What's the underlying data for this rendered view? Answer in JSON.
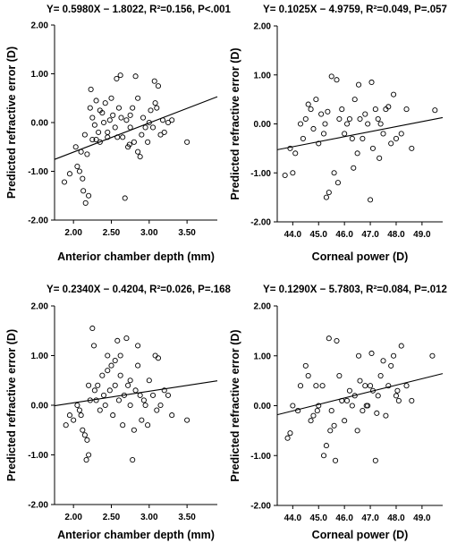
{
  "chart_data": [
    {
      "type": "scatter",
      "title": "Y= 0.5980X − 1.8022, R²=0.156, P<.001",
      "xlabel": "Anterior chamber depth (mm)",
      "ylabel": "Predicted refractive error (D)",
      "xlim": [
        1.75,
        3.9
      ],
      "ylim": [
        -2.0,
        2.0
      ],
      "xticks": [
        "2.00",
        "2.50",
        "3.00",
        "3.50"
      ],
      "yticks": [
        "2.00",
        "1.00",
        "0.00",
        "-1.00",
        "-2.00"
      ],
      "fit": {
        "slope": 0.598,
        "intercept": -1.8022
      },
      "x": [
        1.88,
        1.95,
        2.03,
        2.05,
        2.08,
        2.1,
        2.12,
        2.13,
        2.15,
        2.16,
        2.18,
        2.2,
        2.22,
        2.23,
        2.25,
        2.25,
        2.28,
        2.3,
        2.3,
        2.33,
        2.35,
        2.38,
        2.4,
        2.42,
        2.45,
        2.48,
        2.5,
        2.52,
        2.55,
        2.57,
        2.6,
        2.62,
        2.63,
        2.65,
        2.68,
        2.7,
        2.72,
        2.74,
        2.75,
        2.78,
        2.8,
        2.82,
        2.85,
        2.88,
        2.9,
        2.92,
        2.95,
        2.98,
        3.0,
        3.02,
        3.05,
        3.07,
        3.1,
        3.12,
        3.15,
        3.18,
        3.2,
        3.25,
        3.3,
        3.5,
        2.75,
        2.85,
        2.58,
        2.45,
        3.08,
        2.35
      ],
      "y": [
        -1.22,
        -1.05,
        -0.5,
        -0.9,
        -1.0,
        -0.6,
        -1.15,
        -1.4,
        -0.25,
        -1.65,
        -0.65,
        -1.5,
        0.3,
        0.68,
        -0.35,
        0.1,
        -0.05,
        -0.35,
        0.45,
        -0.2,
        -0.4,
        0.2,
        0.0,
        0.4,
        -0.3,
        0.05,
        0.5,
        0.15,
        -0.1,
        0.9,
        0.3,
        0.97,
        0.1,
        -0.3,
        -1.55,
        0.05,
        -0.5,
        -0.45,
        0.15,
        0.3,
        -0.4,
        0.95,
        0.5,
        -0.7,
        -0.25,
        0.1,
        -0.1,
        -0.4,
        0.0,
        0.25,
        -0.1,
        0.85,
        0.3,
        0.75,
        -0.25,
        0.05,
        -0.2,
        0.0,
        0.05,
        -0.4,
        -0.1,
        -0.6,
        -0.3,
        -0.2,
        0.4,
        0.25
      ]
    },
    {
      "type": "scatter",
      "title": "Y= 0.1025X − 4.9759, R²=0.049, P=.057",
      "xlabel": "Corneal power (D)",
      "ylabel": "Predicted refractive error (D)",
      "xlim": [
        43.4,
        49.8
      ],
      "ylim": [
        -2.0,
        2.0
      ],
      "xticks": [
        "44.0",
        "45.0",
        "46.0",
        "47.0",
        "48.0",
        "49.0"
      ],
      "yticks": [
        "2.00",
        "1.00",
        "0.00",
        "-1.00",
        "-2.00"
      ],
      "fit": {
        "slope": 0.1025,
        "intercept": -4.9759
      },
      "x": [
        43.7,
        43.9,
        44.0,
        44.1,
        44.3,
        44.4,
        44.5,
        44.6,
        44.7,
        44.8,
        44.9,
        45.0,
        45.1,
        45.2,
        45.3,
        45.35,
        45.4,
        45.5,
        45.6,
        45.7,
        45.8,
        45.9,
        46.0,
        46.1,
        46.2,
        46.3,
        46.4,
        46.5,
        46.6,
        46.7,
        46.8,
        46.9,
        47.0,
        47.1,
        47.2,
        47.3,
        47.4,
        47.5,
        47.6,
        47.7,
        47.8,
        47.9,
        48.0,
        48.2,
        48.4,
        48.6,
        49.5,
        46.55,
        47.05,
        45.75,
        46.35,
        47.35,
        45.25
      ],
      "y": [
        -1.05,
        -0.5,
        -1.0,
        -0.6,
        0.0,
        -0.3,
        0.1,
        0.4,
        0.3,
        -0.1,
        0.5,
        -0.4,
        0.2,
        -0.2,
        -1.5,
        0.25,
        -1.4,
        0.97,
        -1.0,
        0.9,
        0.1,
        0.3,
        -0.2,
        0.0,
        0.1,
        -0.3,
        0.5,
        -0.6,
        0.1,
        -0.3,
        0.2,
        0.0,
        -1.55,
        -0.5,
        0.3,
        0.1,
        0.0,
        -0.2,
        0.3,
        0.35,
        -0.4,
        0.6,
        -0.3,
        -0.2,
        0.3,
        -0.5,
        0.28,
        0.8,
        0.85,
        -1.2,
        -0.9,
        -0.7,
        0.0
      ]
    },
    {
      "type": "scatter",
      "title": "Y= 0.2340X − 0.4204, R²=0.026, P=.168",
      "xlabel": "Anterior chamber depth (mm)",
      "ylabel": "Predicted refractive error (D)",
      "xlim": [
        1.75,
        3.9
      ],
      "ylim": [
        -2.0,
        2.0
      ],
      "xticks": [
        "2.00",
        "2.50",
        "3.00",
        "3.50"
      ],
      "yticks": [
        "2.00",
        "1.00",
        "0.00",
        "-1.00",
        "-2.00"
      ],
      "fit": {
        "slope": 0.234,
        "intercept": -0.4204
      },
      "x": [
        1.9,
        1.95,
        2.0,
        2.05,
        2.08,
        2.1,
        2.12,
        2.15,
        2.17,
        2.18,
        2.2,
        2.22,
        2.25,
        2.27,
        2.28,
        2.3,
        2.32,
        2.35,
        2.38,
        2.4,
        2.42,
        2.45,
        2.48,
        2.5,
        2.52,
        2.55,
        2.58,
        2.6,
        2.62,
        2.65,
        2.67,
        2.7,
        2.72,
        2.75,
        2.78,
        2.8,
        2.82,
        2.85,
        2.88,
        2.9,
        2.93,
        2.95,
        2.98,
        3.0,
        3.05,
        3.08,
        3.1,
        3.15,
        3.2,
        3.25,
        3.3,
        3.5,
        2.45,
        2.55,
        2.75,
        2.62,
        2.2,
        3.12,
        2.85
      ],
      "y": [
        -0.4,
        -0.2,
        -0.3,
        0.0,
        -0.1,
        -0.2,
        -0.5,
        -0.6,
        -1.1,
        -0.7,
        -1.0,
        0.1,
        1.55,
        1.2,
        0.3,
        0.1,
        0.4,
        -0.1,
        0.6,
        0.2,
        0.0,
        1.0,
        0.3,
        0.8,
        -0.2,
        0.4,
        1.3,
        0.1,
        0.6,
        -0.4,
        0.2,
        1.35,
        0.4,
        0.0,
        -1.1,
        -0.5,
        0.3,
        0.8,
        0.2,
        -0.3,
        0.1,
        0.0,
        -0.4,
        0.5,
        0.2,
        1.0,
        -0.1,
        0.0,
        0.3,
        0.2,
        -0.2,
        -0.3,
        0.7,
        0.9,
        0.5,
        1.0,
        0.4,
        0.95,
        1.2
      ]
    },
    {
      "type": "scatter",
      "title": "Y= 0.1290X − 5.7803, R²=0.084, P=.012",
      "xlabel": "Corneal power (D)",
      "ylabel": "Predicted refractive error (D)",
      "xlim": [
        43.4,
        49.8
      ],
      "ylim": [
        -2.0,
        2.0
      ],
      "xticks": [
        "44.0",
        "45.0",
        "46.0",
        "47.0",
        "48.0",
        "49.0"
      ],
      "yticks": [
        "2.00",
        "1.00",
        "0.00",
        "-1.00",
        "-2.00"
      ],
      "fit": {
        "slope": 0.129,
        "intercept": -5.7803
      },
      "x": [
        43.8,
        43.9,
        44.0,
        44.2,
        44.3,
        44.5,
        44.6,
        44.7,
        44.8,
        44.9,
        45.0,
        45.2,
        45.3,
        45.4,
        45.5,
        45.6,
        45.7,
        45.8,
        45.9,
        46.0,
        46.1,
        46.2,
        46.3,
        46.4,
        46.5,
        46.6,
        46.7,
        46.8,
        46.9,
        47.0,
        47.1,
        47.2,
        47.3,
        47.4,
        47.5,
        47.6,
        47.7,
        47.8,
        47.9,
        48.0,
        48.1,
        48.2,
        48.4,
        48.6,
        49.4,
        45.45,
        45.65,
        46.55,
        47.05,
        47.25,
        45.15,
        48.05,
        46.85,
        44.95
      ],
      "y": [
        -0.65,
        -0.55,
        0.0,
        -0.1,
        0.4,
        0.8,
        0.6,
        -0.3,
        -0.2,
        0.4,
        0.0,
        -1.0,
        -0.8,
        1.35,
        -0.1,
        -0.4,
        1.3,
        0.6,
        0.1,
        -0.3,
        0.1,
        0.3,
        0.0,
        0.2,
        -0.5,
        0.5,
        -0.1,
        0.4,
        0.0,
        0.4,
        0.3,
        -1.1,
        0.2,
        0.6,
        0.9,
        -0.2,
        0.4,
        0.8,
        1.0,
        0.2,
        0.1,
        1.2,
        0.4,
        0.1,
        1.0,
        -0.5,
        -1.1,
        1.0,
        1.05,
        -0.15,
        0.4,
        0.3,
        0.0,
        -0.1
      ]
    }
  ]
}
